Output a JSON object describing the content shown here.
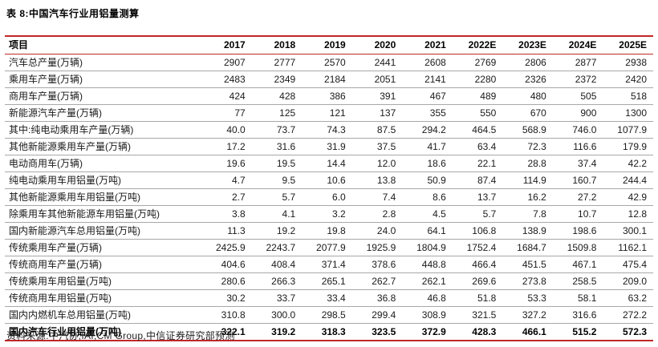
{
  "title": "表 8:中国汽车行业用铝量测算",
  "source": "资料来源:中汽协,IAI,CM Group,中信证券研究部预测",
  "colors": {
    "accent_line": "#c02828",
    "row_separator": "#a8a8a8",
    "text": "#1a1a1a"
  },
  "table": {
    "columns": [
      "项目",
      "2017",
      "2018",
      "2019",
      "2020",
      "2021",
      "2022E",
      "2023E",
      "2024E",
      "2025E"
    ],
    "rows": [
      {
        "label": "汽车总产量(万辆)",
        "bold": false,
        "values": [
          "2907",
          "2777",
          "2570",
          "2441",
          "2608",
          "2769",
          "2806",
          "2877",
          "2938"
        ]
      },
      {
        "label": "乘用车产量(万辆)",
        "bold": false,
        "values": [
          "2483",
          "2349",
          "2184",
          "2051",
          "2141",
          "2280",
          "2326",
          "2372",
          "2420"
        ]
      },
      {
        "label": "商用车产量(万辆)",
        "bold": false,
        "values": [
          "424",
          "428",
          "386",
          "391",
          "467",
          "489",
          "480",
          "505",
          "518"
        ]
      },
      {
        "label": "新能源汽车产量(万辆)",
        "bold": false,
        "values": [
          "77",
          "125",
          "121",
          "137",
          "355",
          "550",
          "670",
          "900",
          "1300"
        ]
      },
      {
        "label": "其中:纯电动乘用车产量(万辆)",
        "bold": false,
        "values": [
          "40.0",
          "73.7",
          "74.3",
          "87.5",
          "294.2",
          "464.5",
          "568.9",
          "746.0",
          "1077.9"
        ]
      },
      {
        "label": "其他新能源乘用车产量(万辆)",
        "bold": false,
        "values": [
          "17.2",
          "31.6",
          "31.9",
          "37.5",
          "41.7",
          "63.4",
          "72.3",
          "116.6",
          "179.9"
        ]
      },
      {
        "label": "电动商用车(万辆)",
        "bold": false,
        "values": [
          "19.6",
          "19.5",
          "14.4",
          "12.0",
          "18.6",
          "22.1",
          "28.8",
          "37.4",
          "42.2"
        ]
      },
      {
        "label": "纯电动乘用车用铝量(万吨)",
        "bold": false,
        "values": [
          "4.7",
          "9.5",
          "10.6",
          "13.8",
          "50.9",
          "87.4",
          "114.9",
          "160.7",
          "244.4"
        ]
      },
      {
        "label": "其他新能源乘用车用铝量(万吨)",
        "bold": false,
        "values": [
          "2.7",
          "5.7",
          "6.0",
          "7.4",
          "8.6",
          "13.7",
          "16.2",
          "27.2",
          "42.9"
        ]
      },
      {
        "label": "除乘用车其他新能源车用铝量(万吨)",
        "bold": false,
        "values": [
          "3.8",
          "4.1",
          "3.2",
          "2.8",
          "4.5",
          "5.7",
          "7.8",
          "10.7",
          "12.8"
        ]
      },
      {
        "label": "国内新能源汽车总用铝量(万吨)",
        "bold": false,
        "values": [
          "11.3",
          "19.2",
          "19.8",
          "24.0",
          "64.1",
          "106.8",
          "138.9",
          "198.6",
          "300.1"
        ]
      },
      {
        "label": "传统乘用车产量(万辆)",
        "bold": false,
        "values": [
          "2425.9",
          "2243.7",
          "2077.9",
          "1925.9",
          "1804.9",
          "1752.4",
          "1684.7",
          "1509.8",
          "1162.1"
        ]
      },
      {
        "label": "传统商用车产量(万辆)",
        "bold": false,
        "values": [
          "404.6",
          "408.4",
          "371.4",
          "378.6",
          "448.8",
          "466.4",
          "451.5",
          "467.1",
          "475.4"
        ]
      },
      {
        "label": "传统乘用车用铝量(万吨)",
        "bold": false,
        "values": [
          "280.6",
          "266.3",
          "265.1",
          "262.7",
          "262.1",
          "269.6",
          "273.8",
          "258.5",
          "209.0"
        ]
      },
      {
        "label": "传统商用车用铝量(万吨)",
        "bold": false,
        "values": [
          "30.2",
          "33.7",
          "33.4",
          "36.8",
          "46.8",
          "51.8",
          "53.3",
          "58.1",
          "63.2"
        ]
      },
      {
        "label": "国内内燃机车总用铝量(万吨)",
        "bold": false,
        "values": [
          "310.8",
          "300.0",
          "298.5",
          "299.4",
          "308.9",
          "321.5",
          "327.2",
          "316.6",
          "272.2"
        ]
      },
      {
        "label": "国内汽车行业用铝量(万吨)",
        "bold": true,
        "values": [
          "322.1",
          "319.2",
          "318.3",
          "323.5",
          "372.9",
          "428.3",
          "466.1",
          "515.2",
          "572.3"
        ]
      }
    ]
  }
}
